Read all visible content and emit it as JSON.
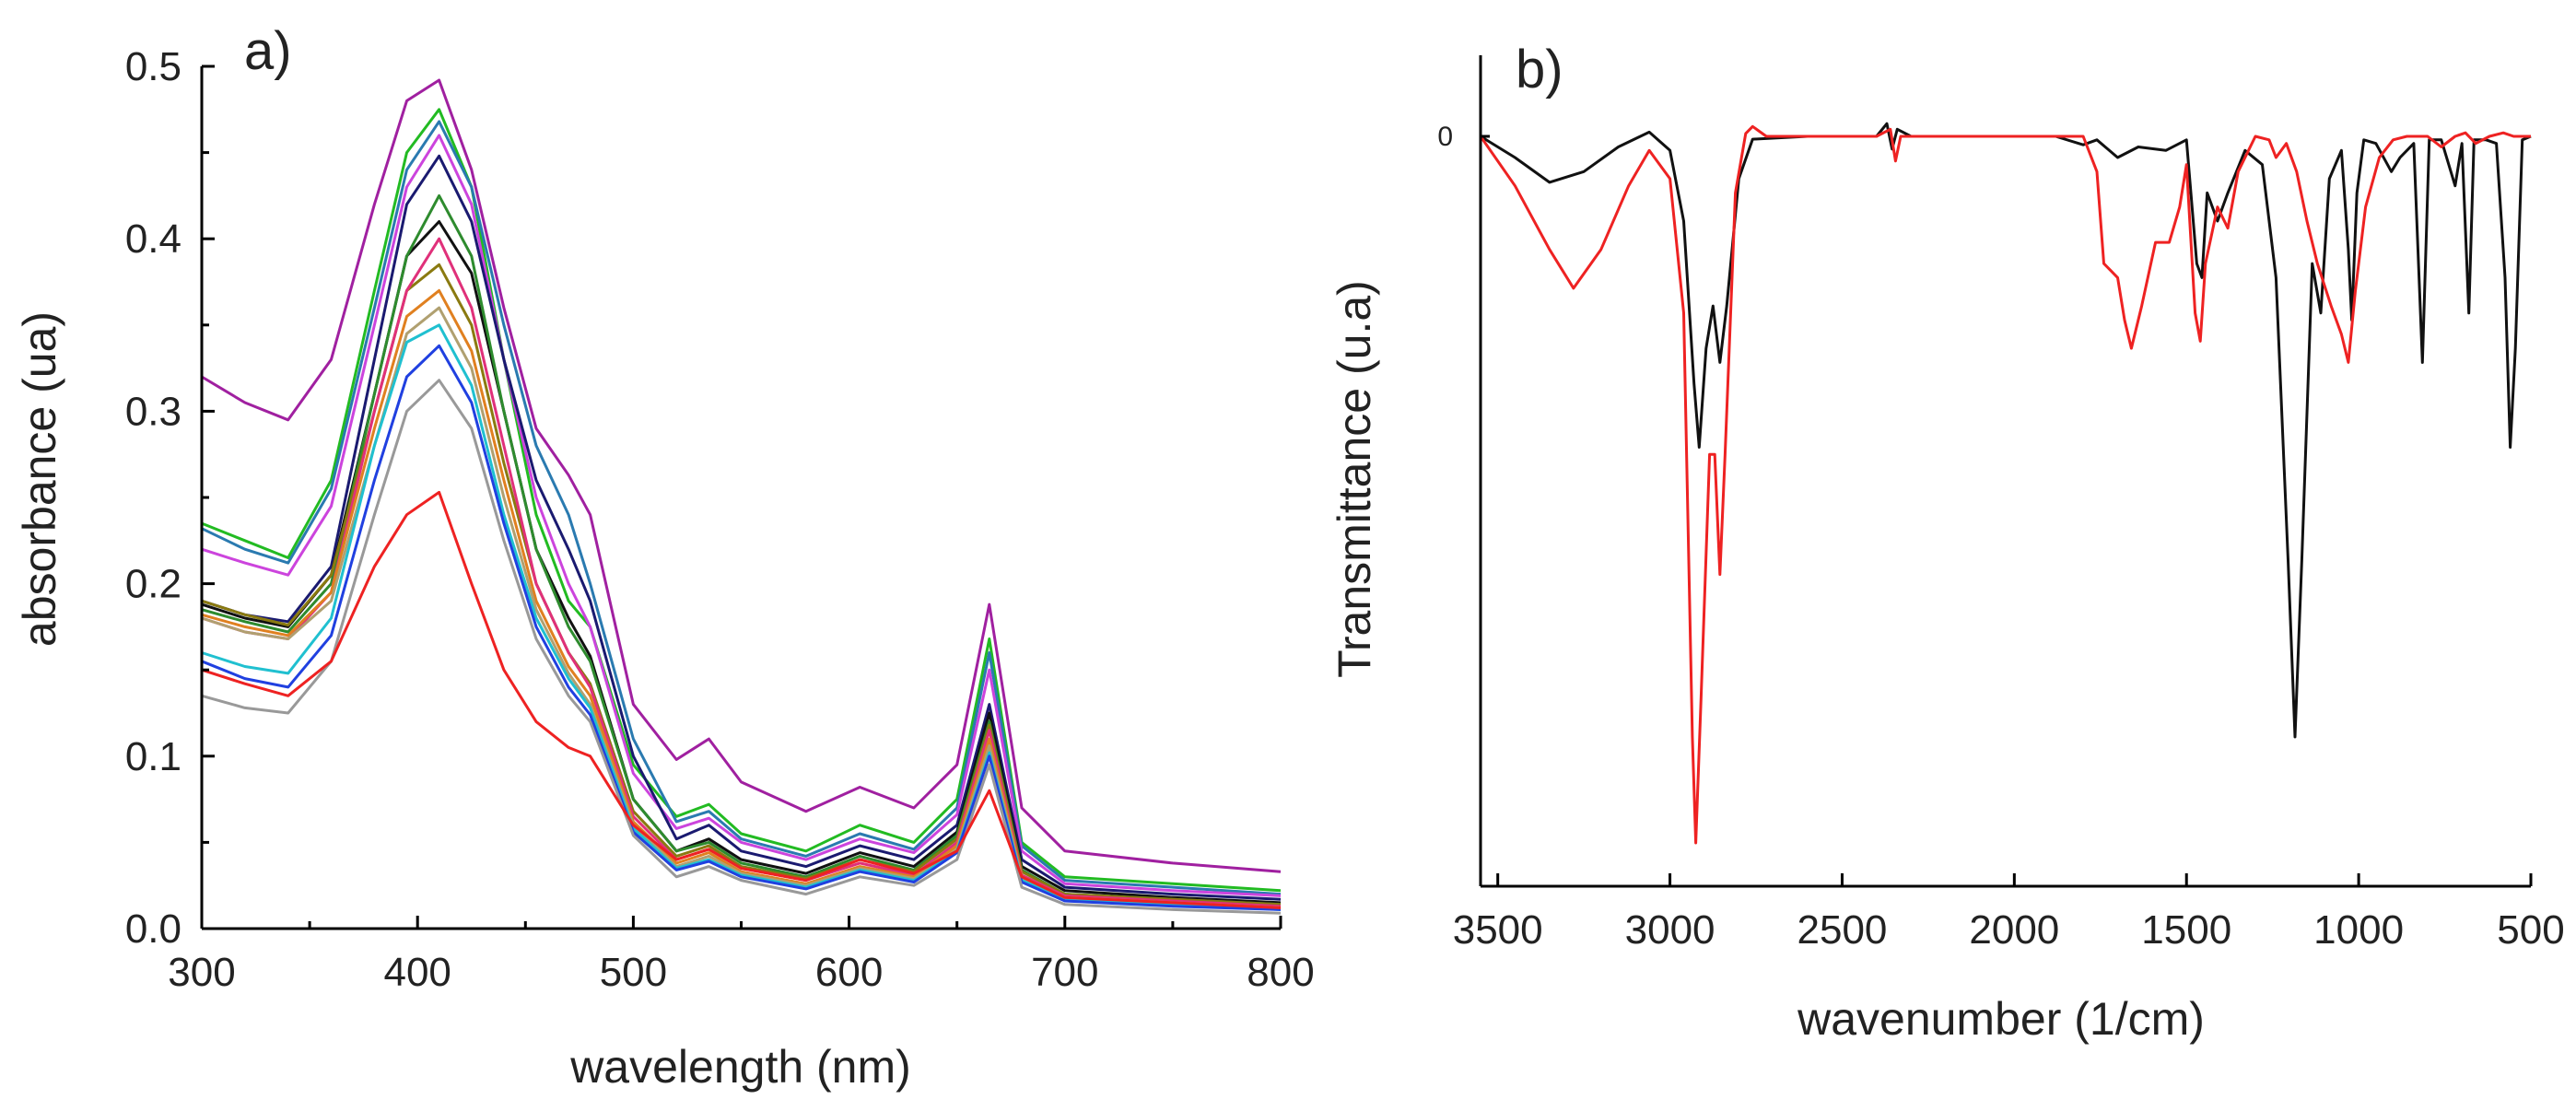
{
  "chart_data": [
    {
      "id": "a",
      "type": "line",
      "panel_label": "a)",
      "xlabel": "wavelength (nm)",
      "ylabel": "absorbance (ua)",
      "xlim": [
        300,
        800
      ],
      "ylim": [
        0.0,
        0.5
      ],
      "xticks": [
        300,
        400,
        500,
        600,
        700,
        800
      ],
      "xtick_labels": [
        "300",
        "400",
        "500",
        "600",
        "700",
        "800"
      ],
      "yticks": [
        0.0,
        0.1,
        0.2,
        0.3,
        0.4,
        0.5
      ],
      "ytick_labels": [
        "0.0",
        "0.1",
        "0.2",
        "0.3",
        "0.4",
        "0.5"
      ],
      "x": [
        300,
        320,
        340,
        360,
        380,
        395,
        410,
        425,
        440,
        455,
        470,
        480,
        500,
        520,
        535,
        550,
        580,
        605,
        630,
        650,
        665,
        680,
        700,
        750,
        800
      ],
      "series": [
        {
          "name": "purple",
          "color": "#a020a0",
          "values": [
            0.32,
            0.305,
            0.295,
            0.33,
            0.42,
            0.48,
            0.492,
            0.44,
            0.36,
            0.29,
            0.263,
            0.24,
            0.13,
            0.098,
            0.11,
            0.085,
            0.068,
            0.082,
            0.07,
            0.095,
            0.188,
            0.07,
            0.045,
            0.038,
            0.033
          ]
        },
        {
          "name": "green",
          "color": "#22bb22",
          "values": [
            0.235,
            0.225,
            0.215,
            0.26,
            0.37,
            0.45,
            0.475,
            0.43,
            0.33,
            0.24,
            0.19,
            0.175,
            0.095,
            0.065,
            0.072,
            0.055,
            0.045,
            0.06,
            0.05,
            0.075,
            0.168,
            0.05,
            0.03,
            0.026,
            0.022
          ]
        },
        {
          "name": "steelblue",
          "color": "#2a7ab0",
          "values": [
            0.232,
            0.22,
            0.212,
            0.255,
            0.36,
            0.44,
            0.468,
            0.43,
            0.35,
            0.28,
            0.24,
            0.2,
            0.11,
            0.062,
            0.068,
            0.052,
            0.042,
            0.055,
            0.046,
            0.07,
            0.16,
            0.048,
            0.028,
            0.024,
            0.02
          ]
        },
        {
          "name": "violet",
          "color": "#cc44dd",
          "values": [
            0.22,
            0.212,
            0.205,
            0.245,
            0.35,
            0.43,
            0.46,
            0.42,
            0.33,
            0.25,
            0.2,
            0.175,
            0.09,
            0.058,
            0.064,
            0.05,
            0.04,
            0.052,
            0.044,
            0.066,
            0.15,
            0.045,
            0.026,
            0.022,
            0.019
          ]
        },
        {
          "name": "navy",
          "color": "#1a1a70",
          "values": [
            0.19,
            0.182,
            0.178,
            0.21,
            0.33,
            0.42,
            0.448,
            0.41,
            0.33,
            0.26,
            0.22,
            0.19,
            0.1,
            0.052,
            0.06,
            0.045,
            0.036,
            0.048,
            0.04,
            0.06,
            0.13,
            0.04,
            0.024,
            0.02,
            0.017
          ]
        },
        {
          "name": "black",
          "color": "#111111",
          "values": [
            0.188,
            0.18,
            0.175,
            0.205,
            0.31,
            0.39,
            0.41,
            0.38,
            0.3,
            0.22,
            0.18,
            0.158,
            0.075,
            0.045,
            0.052,
            0.04,
            0.032,
            0.044,
            0.036,
            0.056,
            0.125,
            0.036,
            0.022,
            0.018,
            0.015
          ]
        },
        {
          "name": "green2",
          "color": "#2e8b2e",
          "values": [
            0.185,
            0.178,
            0.172,
            0.2,
            0.31,
            0.39,
            0.425,
            0.39,
            0.3,
            0.22,
            0.175,
            0.155,
            0.075,
            0.045,
            0.05,
            0.038,
            0.03,
            0.042,
            0.034,
            0.054,
            0.12,
            0.034,
            0.02,
            0.017,
            0.014
          ]
        },
        {
          "name": "olive",
          "color": "#8a7a10",
          "values": [
            0.19,
            0.182,
            0.176,
            0.205,
            0.3,
            0.37,
            0.385,
            0.35,
            0.27,
            0.2,
            0.16,
            0.142,
            0.068,
            0.042,
            0.048,
            0.036,
            0.029,
            0.04,
            0.033,
            0.052,
            0.118,
            0.033,
            0.02,
            0.017,
            0.014
          ]
        },
        {
          "name": "pink",
          "color": "#e0307a",
          "values": [
            0.18,
            0.172,
            0.168,
            0.195,
            0.3,
            0.37,
            0.4,
            0.36,
            0.28,
            0.2,
            0.16,
            0.14,
            0.065,
            0.04,
            0.046,
            0.035,
            0.028,
            0.038,
            0.031,
            0.05,
            0.115,
            0.031,
            0.019,
            0.016,
            0.013
          ]
        },
        {
          "name": "orange",
          "color": "#e08020",
          "values": [
            0.182,
            0.175,
            0.17,
            0.195,
            0.29,
            0.355,
            0.37,
            0.335,
            0.26,
            0.19,
            0.152,
            0.135,
            0.062,
            0.038,
            0.044,
            0.033,
            0.026,
            0.036,
            0.03,
            0.048,
            0.11,
            0.03,
            0.018,
            0.015,
            0.012
          ]
        },
        {
          "name": "tan",
          "color": "#b0a070",
          "values": [
            0.18,
            0.172,
            0.168,
            0.19,
            0.28,
            0.345,
            0.36,
            0.325,
            0.25,
            0.185,
            0.148,
            0.13,
            0.06,
            0.036,
            0.042,
            0.032,
            0.025,
            0.035,
            0.029,
            0.046,
            0.106,
            0.029,
            0.018,
            0.015,
            0.012
          ]
        },
        {
          "name": "cyan",
          "color": "#20c0d0",
          "values": [
            0.16,
            0.152,
            0.148,
            0.18,
            0.28,
            0.34,
            0.35,
            0.315,
            0.24,
            0.18,
            0.145,
            0.128,
            0.058,
            0.035,
            0.04,
            0.031,
            0.024,
            0.034,
            0.028,
            0.045,
            0.102,
            0.028,
            0.017,
            0.014,
            0.011
          ]
        },
        {
          "name": "blue",
          "color": "#2040e0",
          "values": [
            0.155,
            0.145,
            0.14,
            0.17,
            0.26,
            0.32,
            0.338,
            0.305,
            0.235,
            0.175,
            0.14,
            0.124,
            0.056,
            0.034,
            0.039,
            0.03,
            0.023,
            0.033,
            0.027,
            0.044,
            0.1,
            0.027,
            0.016,
            0.013,
            0.011
          ]
        },
        {
          "name": "gray",
          "color": "#999999",
          "values": [
            0.135,
            0.128,
            0.125,
            0.155,
            0.24,
            0.3,
            0.318,
            0.29,
            0.225,
            0.168,
            0.135,
            0.12,
            0.054,
            0.03,
            0.036,
            0.028,
            0.02,
            0.03,
            0.025,
            0.04,
            0.095,
            0.024,
            0.014,
            0.011,
            0.009
          ]
        },
        {
          "name": "red",
          "color": "#ee2222",
          "values": [
            0.15,
            0.142,
            0.135,
            0.155,
            0.21,
            0.24,
            0.253,
            0.2,
            0.15,
            0.12,
            0.105,
            0.1,
            0.06,
            0.04,
            0.046,
            0.035,
            0.028,
            0.04,
            0.032,
            0.045,
            0.08,
            0.03,
            0.018,
            0.015,
            0.012
          ]
        }
      ]
    },
    {
      "id": "b",
      "type": "line",
      "panel_label": "b)",
      "xlabel": "wavenumber (1/cm)",
      "ylabel": "Transmittance (u.a)",
      "xlim": [
        3550,
        500
      ],
      "x_reversed": true,
      "ylim": [
        -1.0,
        0.1
      ],
      "yticks": [
        0
      ],
      "ytick_labels": [
        "0"
      ],
      "xticks": [
        3500,
        3000,
        2500,
        2000,
        1500,
        1000,
        500
      ],
      "xtick_labels": [
        "3500",
        "3000",
        "2500",
        "2000",
        "1500",
        "1000",
        "500"
      ],
      "series": [
        {
          "name": "black",
          "color": "#111111",
          "points": [
            [
              3550,
              0.0
            ],
            [
              3450,
              -0.03
            ],
            [
              3350,
              -0.065
            ],
            [
              3250,
              -0.05
            ],
            [
              3150,
              -0.015
            ],
            [
              3060,
              0.006
            ],
            [
              3000,
              -0.02
            ],
            [
              2960,
              -0.12
            ],
            [
              2930,
              -0.35
            ],
            [
              2915,
              -0.44
            ],
            [
              2895,
              -0.3
            ],
            [
              2875,
              -0.24
            ],
            [
              2855,
              -0.32
            ],
            [
              2835,
              -0.24
            ],
            [
              2800,
              -0.06
            ],
            [
              2760,
              -0.004
            ],
            [
              2600,
              0.0
            ],
            [
              2400,
              0.0
            ],
            [
              2370,
              0.018
            ],
            [
              2355,
              -0.018
            ],
            [
              2340,
              0.01
            ],
            [
              2300,
              0.0
            ],
            [
              2000,
              0.0
            ],
            [
              1880,
              0.0
            ],
            [
              1800,
              -0.012
            ],
            [
              1760,
              -0.005
            ],
            [
              1700,
              -0.03
            ],
            [
              1640,
              -0.015
            ],
            [
              1560,
              -0.02
            ],
            [
              1500,
              -0.005
            ],
            [
              1470,
              -0.18
            ],
            [
              1455,
              -0.2
            ],
            [
              1440,
              -0.08
            ],
            [
              1410,
              -0.12
            ],
            [
              1380,
              -0.08
            ],
            [
              1330,
              -0.02
            ],
            [
              1280,
              -0.04
            ],
            [
              1240,
              -0.2
            ],
            [
              1205,
              -0.6
            ],
            [
              1185,
              -0.85
            ],
            [
              1165,
              -0.6
            ],
            [
              1135,
              -0.18
            ],
            [
              1110,
              -0.25
            ],
            [
              1085,
              -0.06
            ],
            [
              1050,
              -0.02
            ],
            [
              1030,
              -0.16
            ],
            [
              1020,
              -0.26
            ],
            [
              1005,
              -0.08
            ],
            [
              985,
              -0.005
            ],
            [
              950,
              -0.01
            ],
            [
              905,
              -0.05
            ],
            [
              880,
              -0.03
            ],
            [
              840,
              -0.01
            ],
            [
              815,
              -0.32
            ],
            [
              795,
              -0.005
            ],
            [
              760,
              -0.005
            ],
            [
              720,
              -0.07
            ],
            [
              700,
              -0.01
            ],
            [
              680,
              -0.25
            ],
            [
              665,
              -0.005
            ],
            [
              630,
              -0.005
            ],
            [
              600,
              -0.01
            ],
            [
              575,
              -0.2
            ],
            [
              560,
              -0.44
            ],
            [
              545,
              -0.3
            ],
            [
              525,
              -0.005
            ],
            [
              500,
              0.0
            ]
          ]
        },
        {
          "name": "red",
          "color": "#ee2222",
          "points": [
            [
              3550,
              0.0
            ],
            [
              3450,
              -0.07
            ],
            [
              3350,
              -0.16
            ],
            [
              3280,
              -0.215
            ],
            [
              3200,
              -0.16
            ],
            [
              3120,
              -0.07
            ],
            [
              3060,
              -0.02
            ],
            [
              3000,
              -0.06
            ],
            [
              2960,
              -0.25
            ],
            [
              2935,
              -0.85
            ],
            [
              2925,
              -1.0
            ],
            [
              2910,
              -0.8
            ],
            [
              2885,
              -0.45
            ],
            [
              2870,
              -0.45
            ],
            [
              2855,
              -0.62
            ],
            [
              2840,
              -0.45
            ],
            [
              2810,
              -0.08
            ],
            [
              2780,
              0.004
            ],
            [
              2760,
              0.014
            ],
            [
              2720,
              0.0
            ],
            [
              2400,
              0.0
            ],
            [
              2360,
              0.01
            ],
            [
              2345,
              -0.035
            ],
            [
              2330,
              0.0
            ],
            [
              2000,
              0.0
            ],
            [
              1800,
              0.0
            ],
            [
              1760,
              -0.05
            ],
            [
              1740,
              -0.18
            ],
            [
              1720,
              -0.19
            ],
            [
              1700,
              -0.2
            ],
            [
              1680,
              -0.26
            ],
            [
              1660,
              -0.3
            ],
            [
              1630,
              -0.24
            ],
            [
              1590,
              -0.15
            ],
            [
              1550,
              -0.15
            ],
            [
              1520,
              -0.1
            ],
            [
              1500,
              -0.04
            ],
            [
              1475,
              -0.25
            ],
            [
              1460,
              -0.29
            ],
            [
              1445,
              -0.18
            ],
            [
              1410,
              -0.1
            ],
            [
              1380,
              -0.13
            ],
            [
              1350,
              -0.05
            ],
            [
              1300,
              0.0
            ],
            [
              1260,
              -0.005
            ],
            [
              1240,
              -0.03
            ],
            [
              1210,
              -0.01
            ],
            [
              1180,
              -0.05
            ],
            [
              1150,
              -0.12
            ],
            [
              1120,
              -0.18
            ],
            [
              1080,
              -0.24
            ],
            [
              1050,
              -0.28
            ],
            [
              1030,
              -0.32
            ],
            [
              1010,
              -0.22
            ],
            [
              980,
              -0.1
            ],
            [
              940,
              -0.03
            ],
            [
              900,
              -0.005
            ],
            [
              860,
              0.0
            ],
            [
              800,
              0.0
            ],
            [
              760,
              -0.015
            ],
            [
              720,
              0.0
            ],
            [
              690,
              0.005
            ],
            [
              660,
              -0.01
            ],
            [
              620,
              0.0
            ],
            [
              580,
              0.005
            ],
            [
              550,
              0.0
            ],
            [
              500,
              0.0
            ]
          ]
        }
      ]
    }
  ]
}
